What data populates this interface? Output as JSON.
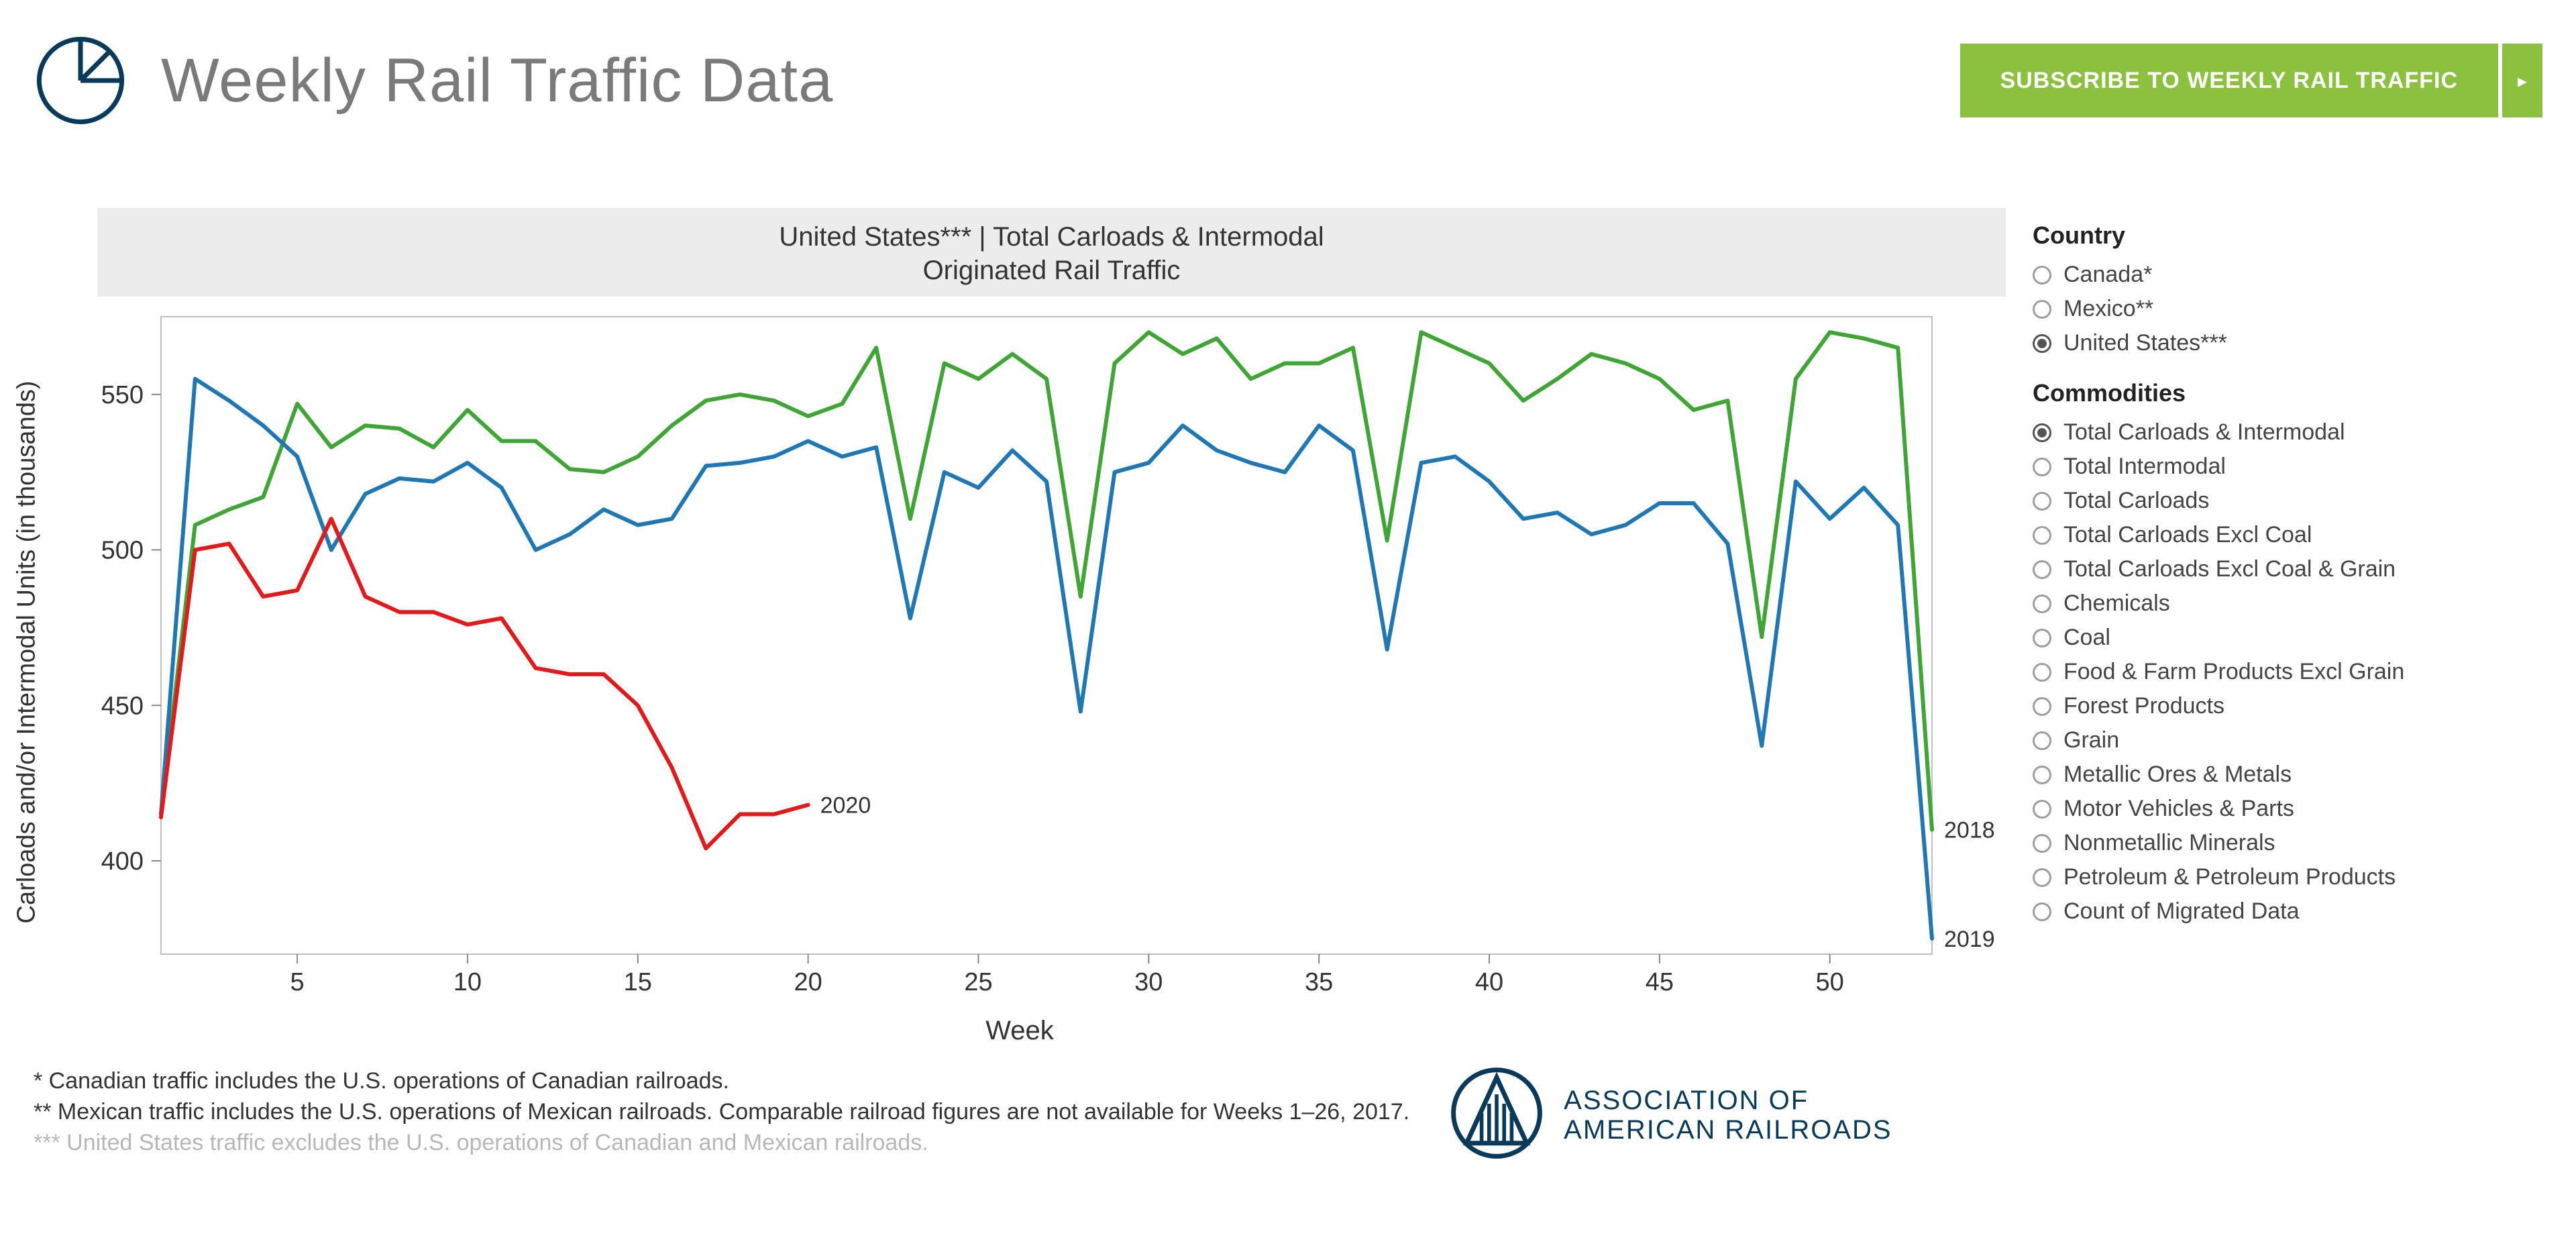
{
  "header": {
    "title": "Weekly Rail Traffic Data",
    "icon_color": "#0a3a5a",
    "subscribe_label": "SUBSCRIBE TO WEEKLY RAIL TRAFFIC",
    "subscribe_bg": "#8cc13f",
    "subscribe_fg": "#ffffff"
  },
  "chart": {
    "type": "line",
    "title_line1": "United States*** | Total Carloads & Intermodal",
    "title_line2": "Originated Rail Traffic",
    "title_band_bg": "#ececec",
    "title_fontsize": 40,
    "x_label": "Week",
    "y_label": "Carloads and/or Intermodal Units (in thousands)",
    "label_fontsize": 40,
    "background_color": "#ffffff",
    "plot_border_color": "#bfbfbf",
    "plot_border_width": 2,
    "x_min": 1,
    "x_max": 53,
    "y_min": 370,
    "y_max": 575,
    "y_ticks": [
      400,
      450,
      500,
      550
    ],
    "x_ticks": [
      5,
      10,
      15,
      20,
      25,
      30,
      35,
      40,
      45,
      50
    ],
    "tick_fontsize": 38,
    "tick_color": "#333333",
    "line_width": 6,
    "series": [
      {
        "name": "2018",
        "color": "#3fa535",
        "end_label": "2018",
        "weeks": [
          1,
          2,
          3,
          4,
          5,
          6,
          7,
          8,
          9,
          10,
          11,
          12,
          13,
          14,
          15,
          16,
          17,
          18,
          19,
          20,
          21,
          22,
          23,
          24,
          25,
          26,
          27,
          28,
          29,
          30,
          31,
          32,
          33,
          34,
          35,
          36,
          37,
          38,
          39,
          40,
          41,
          42,
          43,
          44,
          45,
          46,
          47,
          48,
          49,
          50,
          51,
          52,
          53
        ],
        "values": [
          415,
          508,
          513,
          517,
          547,
          533,
          540,
          539,
          533,
          545,
          535,
          535,
          526,
          525,
          530,
          540,
          548,
          550,
          548,
          543,
          547,
          565,
          510,
          560,
          555,
          563,
          555,
          485,
          560,
          570,
          563,
          568,
          555,
          560,
          560,
          565,
          503,
          570,
          565,
          560,
          548,
          555,
          563,
          560,
          555,
          545,
          548,
          472,
          555,
          570,
          568,
          565,
          410
        ]
      },
      {
        "name": "2019",
        "color": "#1f78b4",
        "end_label": "2019",
        "weeks": [
          1,
          2,
          3,
          4,
          5,
          6,
          7,
          8,
          9,
          10,
          11,
          12,
          13,
          14,
          15,
          16,
          17,
          18,
          19,
          20,
          21,
          22,
          23,
          24,
          25,
          26,
          27,
          28,
          29,
          30,
          31,
          32,
          33,
          34,
          35,
          36,
          37,
          38,
          39,
          40,
          41,
          42,
          43,
          44,
          45,
          46,
          47,
          48,
          49,
          50,
          51,
          52,
          53
        ],
        "values": [
          415,
          555,
          548,
          540,
          530,
          500,
          518,
          523,
          522,
          528,
          520,
          500,
          505,
          513,
          508,
          510,
          527,
          528,
          530,
          535,
          530,
          533,
          478,
          525,
          520,
          532,
          522,
          448,
          525,
          528,
          540,
          532,
          528,
          525,
          540,
          532,
          468,
          528,
          530,
          522,
          510,
          512,
          505,
          508,
          515,
          515,
          502,
          437,
          522,
          510,
          520,
          508,
          375
        ]
      },
      {
        "name": "2020",
        "color": "#e31a1c",
        "end_label": "2020",
        "weeks": [
          1,
          2,
          3,
          4,
          5,
          6,
          7,
          8,
          9,
          10,
          11,
          12,
          13,
          14,
          15,
          16,
          17,
          18,
          19,
          20
        ],
        "values": [
          414,
          500,
          502,
          485,
          487,
          510,
          485,
          480,
          480,
          476,
          478,
          462,
          460,
          460,
          450,
          430,
          404,
          415,
          415,
          418
        ]
      }
    ]
  },
  "filters": {
    "country_heading": "Country",
    "countries": [
      {
        "label": "Canada*",
        "selected": false
      },
      {
        "label": "Mexico**",
        "selected": false
      },
      {
        "label": "United States***",
        "selected": true
      }
    ],
    "commodities_heading": "Commodities",
    "commodities": [
      {
        "label": "Total Carloads & Intermodal",
        "selected": true
      },
      {
        "label": "Total Intermodal",
        "selected": false
      },
      {
        "label": "Total Carloads",
        "selected": false
      },
      {
        "label": "Total Carloads Excl Coal",
        "selected": false
      },
      {
        "label": "Total Carloads Excl Coal & Grain",
        "selected": false
      },
      {
        "label": "Chemicals",
        "selected": false
      },
      {
        "label": "Coal",
        "selected": false
      },
      {
        "label": "Food & Farm Products Excl Grain",
        "selected": false
      },
      {
        "label": "Forest Products",
        "selected": false
      },
      {
        "label": "Grain",
        "selected": false
      },
      {
        "label": "Metallic Ores & Metals",
        "selected": false
      },
      {
        "label": "Motor Vehicles & Parts",
        "selected": false
      },
      {
        "label": "Nonmetallic Minerals",
        "selected": false
      },
      {
        "label": "Petroleum & Petroleum Products",
        "selected": false
      },
      {
        "label": "Count of Migrated Data",
        "selected": false
      }
    ]
  },
  "footnotes": {
    "line1": "* Canadian traffic includes the U.S. operations of Canadian railroads.",
    "line2": "** Mexican traffic includes the U.S. operations of Mexican railroads. Comparable railroad figures are not available for Weeks 1–26, 2017.",
    "line3": "*** United States traffic excludes the U.S. operations of Canadian and Mexican railroads."
  },
  "logo": {
    "text_line1": "ASSOCIATION OF",
    "text_line2": "AMERICAN RAILROADS",
    "color": "#0a3a5a"
  }
}
